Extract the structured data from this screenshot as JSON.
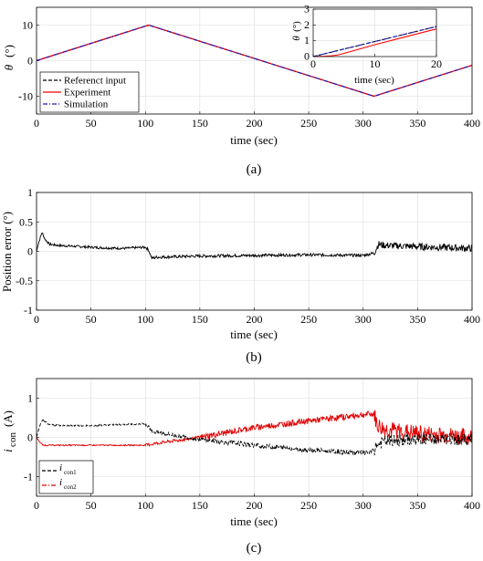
{
  "panels": [
    {
      "label": "(a)",
      "xlabel": "time (sec)",
      "ylabel_symbol": "θ",
      "ylabel_unit": "(°)",
      "xlim": [
        0,
        400
      ],
      "ylim": [
        -15,
        15
      ],
      "xticks": [
        "0",
        "50",
        "100",
        "150",
        "200",
        "250",
        "300",
        "350",
        "400"
      ],
      "yticks": [
        "-10",
        "0",
        "10"
      ],
      "legend": [
        "Referenct input",
        "Experiment",
        "Simulation"
      ],
      "inset": {
        "xlabel": "time (sec)",
        "ylabel_symbol": "θ",
        "ylabel_unit": "(°)",
        "xticks": [
          "0",
          "10",
          "20"
        ],
        "yticks": [
          "0",
          "1",
          "2",
          "3"
        ]
      }
    },
    {
      "label": "(b)",
      "xlabel": "time (sec)",
      "ylabel": "Position error (°)",
      "xlim": [
        0,
        400
      ],
      "ylim": [
        -1,
        1
      ],
      "xticks": [
        "0",
        "50",
        "100",
        "150",
        "200",
        "250",
        "300",
        "350",
        "400"
      ],
      "yticks": [
        "-1",
        "-0.5",
        "0",
        "0.5",
        "1"
      ]
    },
    {
      "label": "(c)",
      "xlabel": "time (sec)",
      "ylabel_main": "i",
      "ylabel_sub": "con",
      "ylabel_unit": "(A)",
      "xlim": [
        0,
        400
      ],
      "ylim": [
        -1.5,
        1.5
      ],
      "xticks": [
        "0",
        "50",
        "100",
        "150",
        "200",
        "250",
        "300",
        "350",
        "400"
      ],
      "yticks": [
        "-1",
        "0",
        "1"
      ],
      "legend": [
        {
          "main": "i",
          "sub": "con1"
        },
        {
          "main": "i",
          "sub": "con2"
        }
      ]
    }
  ],
  "colors": {
    "reference": "#000000",
    "experiment": "#ff0000",
    "simulation": "#1f1fbf",
    "error": "#000000",
    "icon1": "#000000",
    "icon2": "#e00000",
    "grid": "#dcdcdc"
  },
  "chart_data": [
    {
      "type": "line",
      "title": "",
      "xlabel": "time (sec)",
      "ylabel": "θ (°)",
      "xlim": [
        0,
        400
      ],
      "ylim": [
        -15,
        15
      ],
      "grid": true,
      "legend_position": "bottom-left",
      "series": [
        {
          "name": "Referenct input",
          "style": "dashed",
          "x": [
            0,
            103,
            310,
            400
          ],
          "y": [
            0,
            10,
            -10,
            -1.3
          ]
        },
        {
          "name": "Experiment",
          "style": "solid",
          "x": [
            0,
            103,
            310,
            400
          ],
          "y": [
            0,
            10,
            -10,
            -1.3
          ]
        },
        {
          "name": "Simulation",
          "style": "dash-dot",
          "x": [
            0,
            103,
            310,
            400
          ],
          "y": [
            0,
            10,
            -10,
            -1.3
          ]
        }
      ],
      "inset": {
        "xlabel": "time (sec)",
        "ylabel": "θ (°)",
        "xlim": [
          0,
          20
        ],
        "ylim": [
          0,
          3
        ],
        "series": [
          {
            "name": "Referenct input",
            "x": [
              0,
              20
            ],
            "y": [
              0,
              1.9
            ]
          },
          {
            "name": "Experiment",
            "x": [
              0,
              1,
              2,
              3,
              4,
              5,
              10,
              15,
              20
            ],
            "y": [
              0,
              0.01,
              0.02,
              0.05,
              0.1,
              0.2,
              0.75,
              1.25,
              1.75
            ]
          },
          {
            "name": "Simulation",
            "x": [
              0,
              20
            ],
            "y": [
              0,
              1.9
            ]
          }
        ]
      }
    },
    {
      "type": "line",
      "title": "",
      "xlabel": "time (sec)",
      "ylabel": "Position error (°)",
      "xlim": [
        0,
        400
      ],
      "ylim": [
        -1,
        1
      ],
      "grid": true,
      "series": [
        {
          "name": "",
          "x": [
            0,
            2,
            5,
            8,
            12,
            20,
            40,
            60,
            80,
            100,
            103,
            106,
            110,
            150,
            200,
            250,
            300,
            310,
            314,
            320,
            350,
            400
          ],
          "y": [
            0,
            0.15,
            0.32,
            0.2,
            0.12,
            0.1,
            0.08,
            0.06,
            0.05,
            0.07,
            0.02,
            -0.12,
            -0.1,
            -0.08,
            -0.07,
            -0.06,
            -0.07,
            -0.03,
            0.12,
            0.1,
            0.08,
            0.05
          ]
        }
      ]
    },
    {
      "type": "line",
      "title": "",
      "xlabel": "time (sec)",
      "ylabel": "i con (A)",
      "xlim": [
        0,
        400
      ],
      "ylim": [
        -1.5,
        1.5
      ],
      "grid": true,
      "legend_position": "bottom-left",
      "series": [
        {
          "name": "i con1",
          "style": "dashed",
          "x": [
            0,
            3,
            6,
            10,
            20,
            50,
            100,
            103,
            106,
            150,
            200,
            250,
            300,
            310,
            312,
            320,
            350,
            400
          ],
          "y": [
            0,
            0.3,
            0.45,
            0.35,
            0.3,
            0.3,
            0.35,
            0.3,
            0.15,
            -0.05,
            -0.2,
            -0.32,
            -0.4,
            -0.35,
            -0.2,
            -0.1,
            -0.05,
            -0.05
          ]
        },
        {
          "name": "i con2",
          "style": "dash-dot",
          "x": [
            0,
            3,
            6,
            10,
            50,
            100,
            110,
            150,
            200,
            250,
            300,
            310,
            313,
            320,
            350,
            400
          ],
          "y": [
            0,
            -0.12,
            -0.2,
            -0.2,
            -0.2,
            -0.2,
            -0.15,
            0.0,
            0.25,
            0.42,
            0.58,
            0.6,
            0.3,
            0.2,
            0.1,
            0.0
          ]
        }
      ]
    }
  ]
}
